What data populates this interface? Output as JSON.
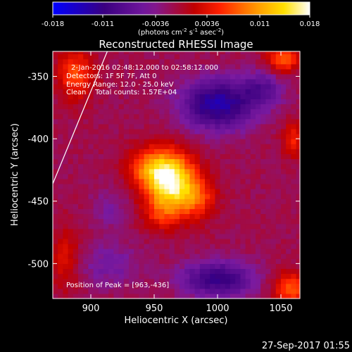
{
  "colorbar": {
    "tick_labels": [
      "-0.018",
      "-0.011",
      "-0.0036",
      "0.0036",
      "0.011",
      "0.018"
    ],
    "tick_values": [
      -0.018,
      -0.011,
      -0.0036,
      0.0036,
      0.011,
      0.018
    ],
    "range": [
      -0.018,
      0.018
    ],
    "units_prefix": "(photons cm",
    "units_exp1": "-2",
    "units_mid": " s",
    "units_exp2": "-1",
    "units_mid2": " asec",
    "units_exp3": "-2",
    "units_suffix": ")",
    "colors": [
      "#0000ff",
      "#3a0080",
      "#7a1aa0",
      "#c00000",
      "#ff2000",
      "#ff9000",
      "#ffe000",
      "#ffffff"
    ]
  },
  "annotations": {
    "line1": "2-Jan-2016 02:48:12.000 to 02:58:12.000",
    "line2": "Detectors: 1F 5F 7F, Att 0",
    "line3": "Energy Range: 12.0 - 25.0 keV",
    "line4": "Clean    Total counts: 1.57E+04",
    "peak": "Position of Peak = [963,-436]"
  },
  "footer": {
    "timestamp": "27-Sep-2017 01:55"
  },
  "chart_data": {
    "type": "heatmap",
    "title": "Reconstructed RHESSI Image",
    "xlabel": "Heliocentric X (arcsec)",
    "ylabel": "Heliocentric Y (arcsec)",
    "xlim": [
      870,
      1065
    ],
    "ylim": [
      -528,
      -330
    ],
    "xticks": [
      900,
      950,
      1000,
      1050
    ],
    "yticks": [
      -350,
      -400,
      -450,
      -500
    ],
    "pixel_size_arcsec": 4,
    "peak": [
      963,
      -436
    ],
    "limb_line": [
      [
        870,
        -436
      ],
      [
        913,
        -330
      ]
    ],
    "sources": [
      {
        "x": 963,
        "y": -436,
        "sx": 14,
        "sy": 16,
        "amp": 0.018
      },
      {
        "x": 948,
        "y": -422,
        "sx": 14,
        "sy": 11,
        "amp": 0.008
      },
      {
        "x": 985,
        "y": -448,
        "sx": 10,
        "sy": 12,
        "amp": 0.006
      },
      {
        "x": 955,
        "y": -462,
        "sx": 10,
        "sy": 8,
        "amp": 0.004
      },
      {
        "x": 1052,
        "y": -335,
        "sx": 9,
        "sy": 8,
        "amp": 0.009
      },
      {
        "x": 888,
        "y": -348,
        "sx": 10,
        "sy": 14,
        "amp": 0.008
      },
      {
        "x": 1058,
        "y": -520,
        "sx": 10,
        "sy": 9,
        "amp": 0.009
      },
      {
        "x": 1060,
        "y": -400,
        "sx": 6,
        "sy": 10,
        "amp": 0.006
      },
      {
        "x": 880,
        "y": -495,
        "sx": 8,
        "sy": 18,
        "amp": 0.0045
      },
      {
        "x": 1000,
        "y": -372,
        "sx": 20,
        "sy": 14,
        "amp": -0.012
      },
      {
        "x": 1035,
        "y": -360,
        "sx": 12,
        "sy": 10,
        "amp": -0.006
      },
      {
        "x": 1000,
        "y": -512,
        "sx": 20,
        "sy": 10,
        "amp": -0.01
      },
      {
        "x": 915,
        "y": -500,
        "sx": 16,
        "sy": 12,
        "amp": -0.004
      },
      {
        "x": 915,
        "y": -455,
        "sx": 10,
        "sy": 12,
        "amp": -0.003
      }
    ],
    "background": -0.0012
  }
}
